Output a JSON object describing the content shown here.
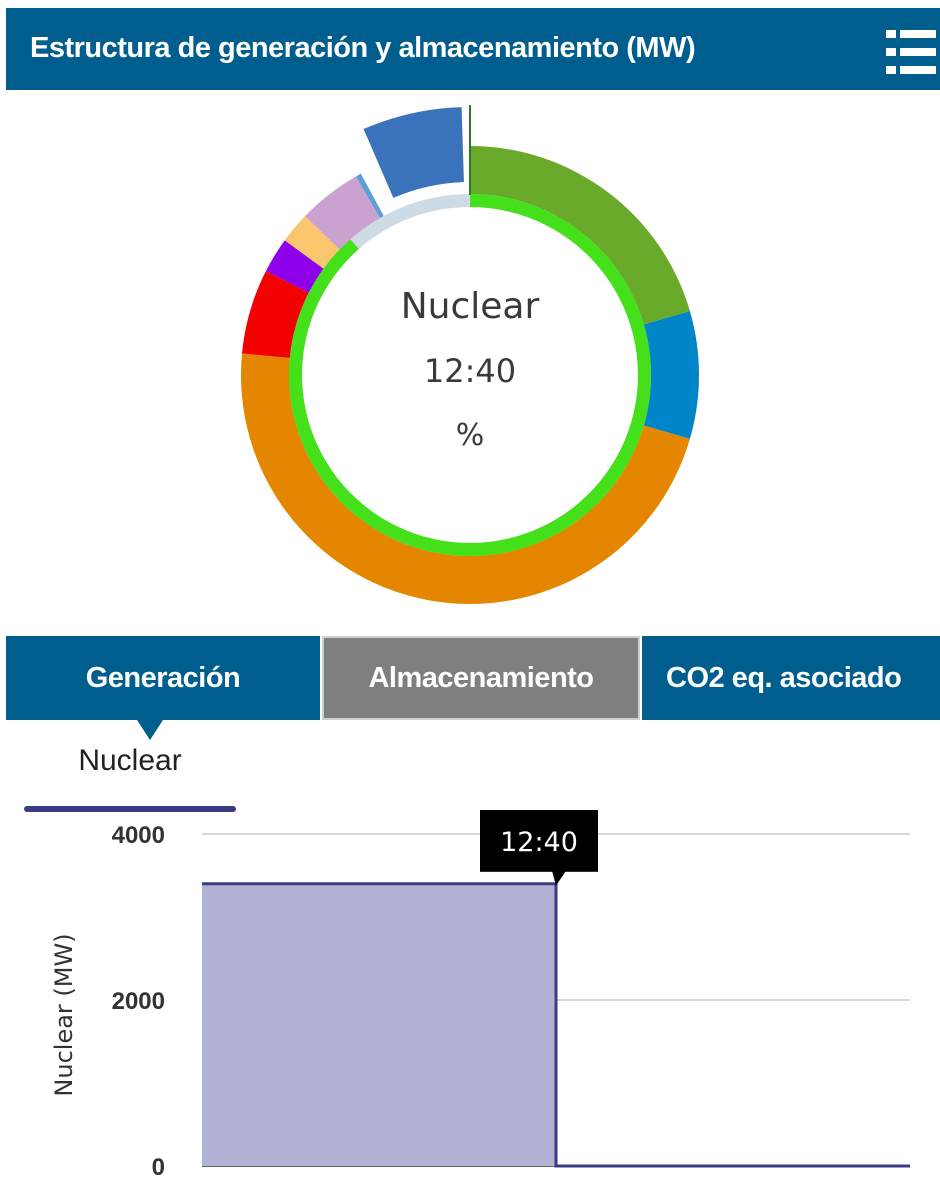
{
  "header": {
    "title": "Estructura de generación y almacenamiento (MW)",
    "menu_icon": "list-menu-icon"
  },
  "donut": {
    "center_title": "Nuclear",
    "center_time": "12:40",
    "center_value": "%",
    "outer_segments": [
      {
        "name": "segment-green",
        "color": "#6aaa2b",
        "fraction": 0.205
      },
      {
        "name": "segment-blue",
        "color": "#0086c8",
        "fraction": 0.09
      },
      {
        "name": "segment-orange",
        "color": "#e58600",
        "fraction": 0.47
      },
      {
        "name": "segment-red",
        "color": "#f30000",
        "fraction": 0.06
      },
      {
        "name": "segment-purple",
        "color": "#8e00e9",
        "fraction": 0.025
      },
      {
        "name": "segment-yellow",
        "color": "#f9c56d",
        "fraction": 0.022
      },
      {
        "name": "segment-lilac",
        "color": "#caa1cf",
        "fraction": 0.045
      },
      {
        "name": "segment-lightblue",
        "color": "#5e9fd6",
        "fraction": 0.004
      },
      {
        "name": "segment-gap",
        "color": "#ffffff",
        "fraction": 0.079
      }
    ],
    "highlight_segment": {
      "name": "segment-highlight",
      "color": "#3a72bb",
      "start_fraction": 0.935,
      "end_fraction": 0.995
    },
    "inner_ring": {
      "color": "#44e01a",
      "unfilled_color": "#cedbe4",
      "fraction": 0.885
    }
  },
  "tabs": [
    {
      "label": "Generación",
      "active": true
    },
    {
      "label": "Almacenamiento",
      "active": false
    },
    {
      "label": "CO2 eq. asociado",
      "active": false
    }
  ],
  "legend": {
    "label": "Nuclear",
    "color": "#3b3a86"
  },
  "tooltip": {
    "text": "12:40"
  },
  "chart_data": {
    "type": "area",
    "ylabel": "Nuclear (MW)",
    "ylim": [
      0,
      4000
    ],
    "yticks": [
      0,
      2000,
      4000
    ],
    "x": [
      0,
      0.5,
      0.5,
      1
    ],
    "values": [
      3400,
      3400,
      0,
      0
    ],
    "series": [
      {
        "name": "Nuclear",
        "values": [
          3400,
          3400,
          0,
          0
        ]
      }
    ],
    "color": "#3b3a86",
    "fill_color": "#b2b2d4",
    "grid": true
  }
}
